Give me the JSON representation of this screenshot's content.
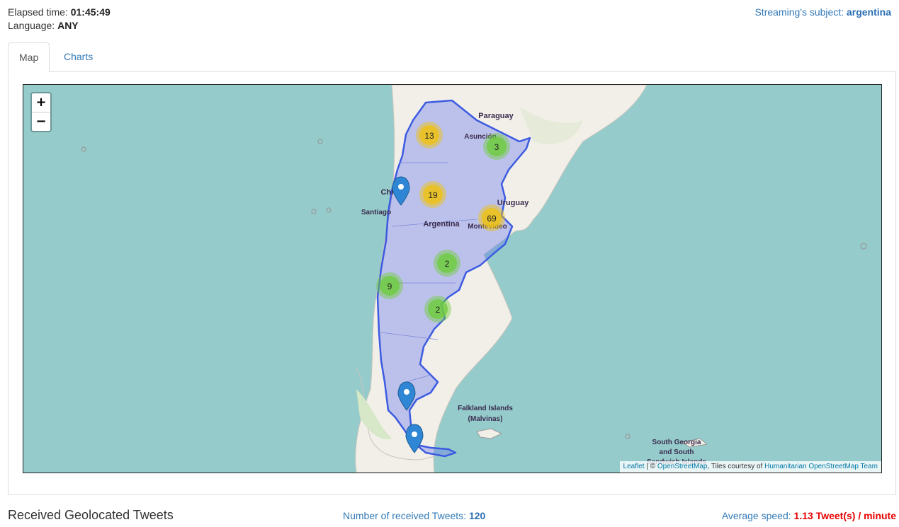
{
  "header": {
    "elapsed_label": "Elapsed time:",
    "elapsed_value": "01:45:49",
    "language_label": "Language:",
    "language_value": "ANY",
    "subject_label": "Streaming's subject:",
    "subject_value": "argentina"
  },
  "tabs": [
    {
      "label": "Map",
      "active": true
    },
    {
      "label": "Charts",
      "active": false
    }
  ],
  "map": {
    "zoom_in": "+",
    "zoom_out": "−",
    "labels": {
      "paraguay": "Paraguay",
      "asuncion": "Asunción",
      "chile": "Chile",
      "santiago": "Santiago",
      "argentina": "Argentina",
      "uruguay": "Uruguay",
      "montevideo": "Montevideo",
      "falkland_1": "Falkland Islands",
      "falkland_2": "(Malvinas)",
      "sgeorgia_1": "South Georgia",
      "sgeorgia_2": "and South",
      "sgeorgia_3": "Sandwich Islands"
    },
    "clusters": [
      {
        "count": "13",
        "color": "#f0c20c"
      },
      {
        "count": "3",
        "color": "#6ecc39"
      },
      {
        "count": "19",
        "color": "#f0c20c"
      },
      {
        "count": "69",
        "color": "#f0c20c"
      },
      {
        "count": "2",
        "color": "#6ecc39"
      },
      {
        "count": "9",
        "color": "#6ecc39"
      },
      {
        "count": "2",
        "color": "#6ecc39"
      }
    ],
    "attribution": {
      "leaflet": "Leaflet",
      "sep": " | © ",
      "osm": "OpenStreetMap",
      "tiles": ", Tiles courtesy of ",
      "hot": "Humanitarian OpenStreetMap Team"
    }
  },
  "footer": {
    "title": "Received Geolocated Tweets",
    "count_label": "Number of received Tweets:",
    "count_value": "120",
    "speed_label": "Average speed:",
    "speed_value": "1.13 Tweet(s) / minute"
  }
}
